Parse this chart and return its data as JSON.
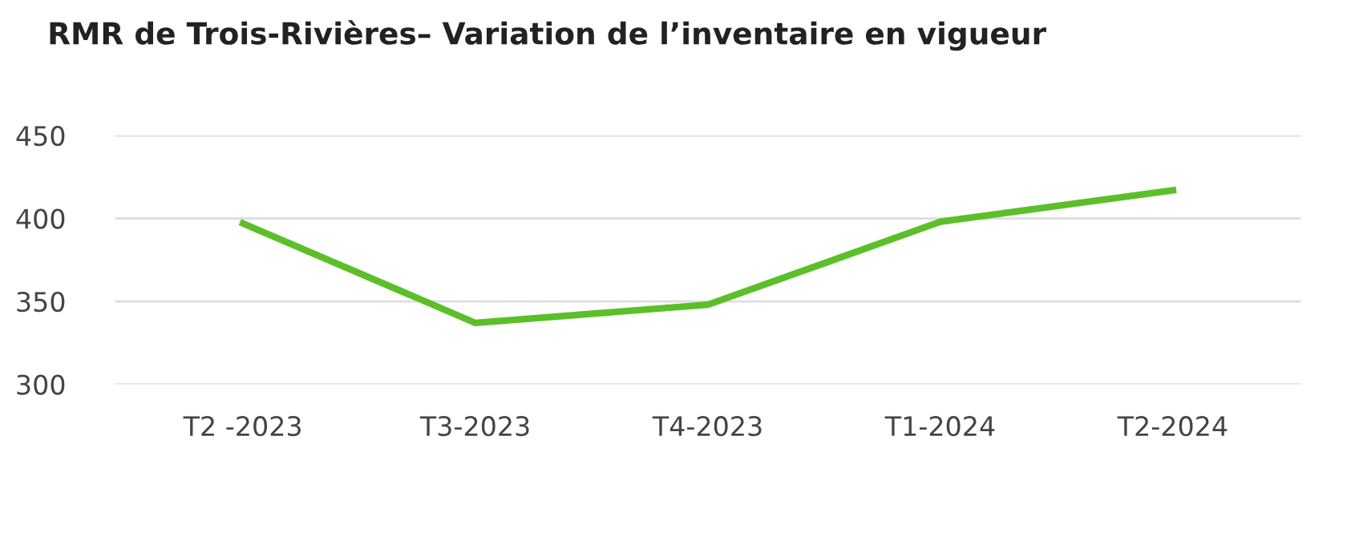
{
  "chart_data": {
    "type": "line",
    "title": "RMR de Trois-Rivières– Variation de l’inventaire en vigueur",
    "categories": [
      "T2 -2023",
      "T3-2023",
      "T4-2023",
      "T1-2024",
      "T2-2024"
    ],
    "series": [
      {
        "color": "#5cbf2a",
        "values": [
          397,
          337,
          348,
          398,
          417
        ]
      }
    ],
    "ylim": [
      300,
      450
    ],
    "yticks": [
      300,
      350,
      400,
      450
    ],
    "grid": "y",
    "marker": "none",
    "line_style": "solid"
  }
}
